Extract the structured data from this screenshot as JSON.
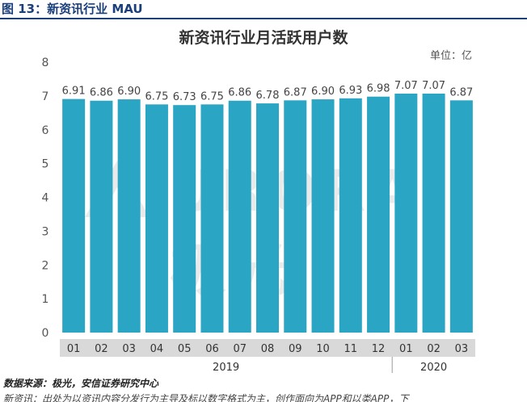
{
  "figure_label": "图 13：新资讯行业 MAU",
  "source": "数据来源：极光，安信证券研究中心",
  "note": "新资讯：出处为以资讯内容分发行为主导及标以数字格式为主，创作面向为APP和以类APP，下",
  "watermark": "URORA极光",
  "colors": {
    "bar": "#2aa5c3",
    "axis_band": "#d9d9d9",
    "title_rule": "#1a3f7a"
  },
  "chart_data": {
    "type": "bar",
    "title": "新资讯行业月活跃用户数",
    "unit": "单位：亿",
    "categories": [
      "01",
      "02",
      "03",
      "04",
      "05",
      "06",
      "07",
      "08",
      "09",
      "10",
      "11",
      "12",
      "01",
      "02",
      "03"
    ],
    "values": [
      6.91,
      6.86,
      6.9,
      6.75,
      6.73,
      6.75,
      6.86,
      6.78,
      6.87,
      6.9,
      6.93,
      6.98,
      7.07,
      7.07,
      6.87
    ],
    "year_groups": [
      {
        "label": "2019",
        "start": 0,
        "end": 11
      },
      {
        "label": "2020",
        "start": 12,
        "end": 14
      }
    ],
    "yticks": [
      "0",
      "1",
      "2",
      "3",
      "4",
      "5",
      "6",
      "7",
      "8"
    ],
    "ylim": [
      0,
      8
    ],
    "grid": false,
    "legend": "none"
  }
}
